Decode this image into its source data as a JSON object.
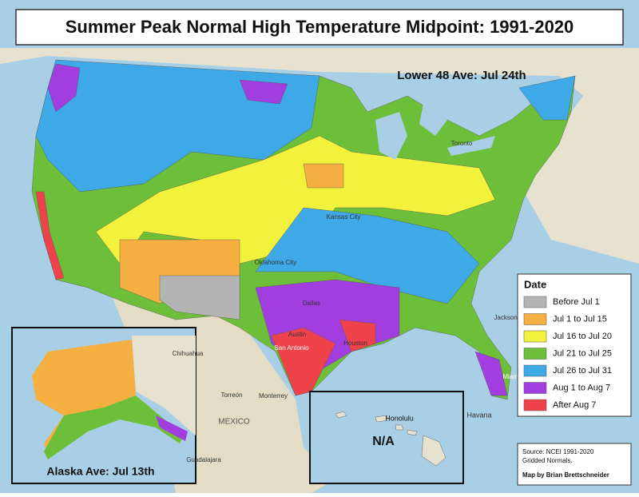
{
  "title": "Summer Peak Normal High Temperature Midpoint: 1991-2020",
  "lower48_average": "Lower 48 Ave: Jul 24th",
  "alaska_average": "Alaska Ave: Jul 13th",
  "hawaii_label": "N/A",
  "legend": {
    "title": "Date",
    "items": [
      {
        "label": "Before Jul 1",
        "color": "#b4b4b4"
      },
      {
        "label": "Jul 1 to Jul 15",
        "color": "#f5b041"
      },
      {
        "label": "Jul 16 to Jul 20",
        "color": "#f2f23c"
      },
      {
        "label": "Jul 21 to Jul 25",
        "color": "#6dbf3a"
      },
      {
        "label": "Jul 26 to Jul 31",
        "color": "#3fa9e8"
      },
      {
        "label": "Aug 1 to Aug 7",
        "color": "#a23ee0"
      },
      {
        "label": "After Aug 7",
        "color": "#f0424a"
      }
    ]
  },
  "source": [
    "Source: NCEI 1991-2020",
    "Gridded Normals."
  ],
  "credit": "Map by Brian Brettschneider",
  "map_labels": [
    "MEXICO",
    "Honolulu",
    "Dallas",
    "Houston",
    "San Antonio",
    "Austin",
    "Oklahoma City",
    "Kansas City",
    "Toronto",
    "Havana",
    "Miami",
    "Jacksonville",
    "Torreón",
    "Monterrey",
    "Chihuahua",
    "Guadalajara"
  ]
}
